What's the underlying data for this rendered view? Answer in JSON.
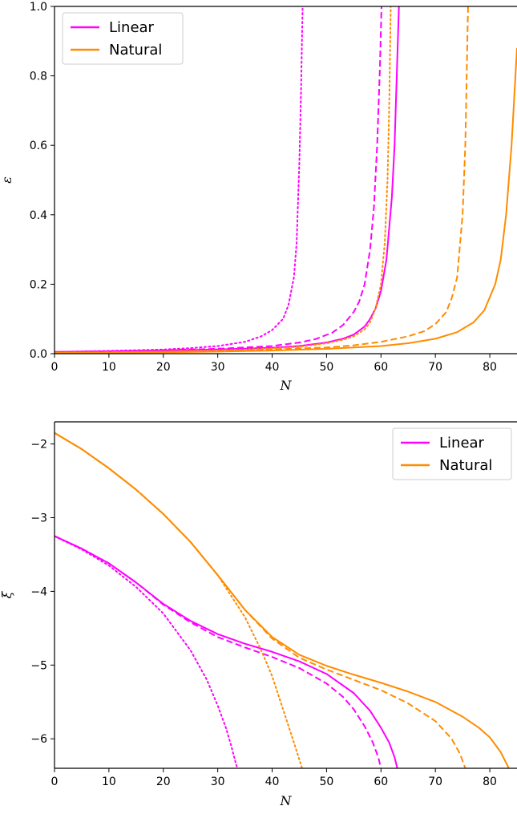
{
  "chart_data": [
    {
      "type": "line",
      "xlabel": "N",
      "ylabel": "ε",
      "xlim": [
        0,
        85
      ],
      "ylim": [
        0.0,
        1.0
      ],
      "xticks": [
        0,
        10,
        20,
        30,
        40,
        50,
        60,
        70,
        80
      ],
      "yticks": [
        0.0,
        0.2,
        0.4,
        0.6,
        0.8,
        1.0
      ],
      "xtick_labels": [
        "0",
        "10",
        "20",
        "30",
        "40",
        "50",
        "60",
        "70",
        "80"
      ],
      "ytick_labels": [
        "0.0",
        "0.2",
        "0.4",
        "0.6",
        "0.8",
        "1.0"
      ],
      "grid": false,
      "legend_position": "top-left",
      "legend": [
        {
          "label": "Linear",
          "color": "#ff00ff"
        },
        {
          "label": "Natural",
          "color": "#ff8c00"
        }
      ],
      "series": [
        {
          "family": "Linear",
          "style": "solid",
          "color": "#ff00ff",
          "x": [
            0,
            10,
            20,
            30,
            40,
            45,
            50,
            53,
            55,
            57,
            58,
            59,
            60,
            61,
            62,
            62.5,
            63,
            63.3
          ],
          "y": [
            0.005,
            0.007,
            0.009,
            0.012,
            0.017,
            0.022,
            0.032,
            0.043,
            0.055,
            0.078,
            0.1,
            0.13,
            0.18,
            0.27,
            0.45,
            0.6,
            0.85,
            1.0
          ]
        },
        {
          "family": "Linear",
          "style": "dashed",
          "color": "#ff00ff",
          "x": [
            0,
            10,
            20,
            30,
            40,
            45,
            48,
            51,
            53,
            55,
            56,
            57,
            58,
            58.7,
            59.3,
            59.8,
            60.1
          ],
          "y": [
            0.005,
            0.007,
            0.01,
            0.014,
            0.022,
            0.032,
            0.042,
            0.06,
            0.082,
            0.12,
            0.15,
            0.2,
            0.3,
            0.42,
            0.6,
            0.82,
            1.0
          ]
        },
        {
          "family": "Linear",
          "style": "dotted",
          "color": "#ff00ff",
          "x": [
            0,
            10,
            20,
            25,
            30,
            35,
            38,
            40,
            42,
            43,
            44,
            44.5,
            45,
            45.3,
            45.6
          ],
          "y": [
            0.005,
            0.008,
            0.012,
            0.016,
            0.022,
            0.034,
            0.05,
            0.068,
            0.1,
            0.14,
            0.22,
            0.32,
            0.55,
            0.75,
            1.0
          ]
        },
        {
          "family": "Natural",
          "style": "solid",
          "color": "#ff8c00",
          "x": [
            0,
            10,
            20,
            30,
            40,
            50,
            60,
            65,
            70,
            74,
            77,
            79,
            81,
            82,
            83,
            84,
            85
          ],
          "y": [
            0.002,
            0.003,
            0.004,
            0.006,
            0.009,
            0.014,
            0.022,
            0.03,
            0.043,
            0.062,
            0.09,
            0.125,
            0.2,
            0.27,
            0.4,
            0.6,
            0.88
          ]
        },
        {
          "family": "Natural",
          "style": "dashed",
          "color": "#ff8c00",
          "x": [
            0,
            10,
            20,
            30,
            40,
            50,
            55,
            60,
            65,
            68,
            70,
            72,
            73,
            74,
            75,
            75.5,
            76
          ],
          "y": [
            0.003,
            0.004,
            0.006,
            0.008,
            0.012,
            0.018,
            0.024,
            0.034,
            0.05,
            0.065,
            0.085,
            0.12,
            0.16,
            0.22,
            0.4,
            0.6,
            1.0
          ]
        },
        {
          "family": "Natural",
          "style": "dotted",
          "color": "#ff8c00",
          "x": [
            0,
            10,
            20,
            30,
            40,
            45,
            50,
            53,
            55,
            57,
            58,
            59,
            60,
            60.7,
            61.2,
            61.5,
            61.8
          ],
          "y": [
            0.003,
            0.004,
            0.006,
            0.009,
            0.015,
            0.02,
            0.03,
            0.04,
            0.05,
            0.07,
            0.09,
            0.13,
            0.2,
            0.32,
            0.5,
            0.7,
            1.0
          ]
        }
      ]
    },
    {
      "type": "line",
      "xlabel": "N",
      "ylabel": "ξ",
      "xlim": [
        0,
        85
      ],
      "ylim": [
        -6.4,
        -1.7
      ],
      "xticks": [
        0,
        10,
        20,
        30,
        40,
        50,
        60,
        70,
        80
      ],
      "yticks": [
        -6,
        -5,
        -4,
        -3,
        -2
      ],
      "xtick_labels": [
        "0",
        "10",
        "20",
        "30",
        "40",
        "50",
        "60",
        "70",
        "80"
      ],
      "ytick_labels": [
        "−6",
        "−5",
        "−4",
        "−3",
        "−2"
      ],
      "grid": false,
      "legend_position": "top-right",
      "legend": [
        {
          "label": "Linear",
          "color": "#ff00ff"
        },
        {
          "label": "Natural",
          "color": "#ff8c00"
        }
      ],
      "series": [
        {
          "family": "Linear",
          "style": "solid",
          "color": "#ff00ff",
          "x": [
            0,
            5,
            10,
            15,
            20,
            25,
            30,
            35,
            40,
            45,
            50,
            55,
            58,
            60,
            61.5,
            62.5,
            63
          ],
          "y": [
            -3.25,
            -3.42,
            -3.62,
            -3.88,
            -4.17,
            -4.4,
            -4.58,
            -4.71,
            -4.82,
            -4.95,
            -5.12,
            -5.38,
            -5.62,
            -5.85,
            -6.05,
            -6.25,
            -6.4
          ]
        },
        {
          "family": "Linear",
          "style": "dashed",
          "color": "#ff00ff",
          "x": [
            0,
            5,
            10,
            15,
            20,
            25,
            30,
            35,
            40,
            45,
            50,
            53,
            55,
            57,
            58.5,
            59.5,
            60
          ],
          "y": [
            -3.25,
            -3.42,
            -3.62,
            -3.88,
            -4.18,
            -4.42,
            -4.62,
            -4.76,
            -4.89,
            -5.04,
            -5.25,
            -5.43,
            -5.6,
            -5.83,
            -6.05,
            -6.25,
            -6.4
          ]
        },
        {
          "family": "Linear",
          "style": "dotted",
          "color": "#ff00ff",
          "x": [
            0,
            5,
            10,
            15,
            20,
            25,
            28,
            30,
            31.5,
            32.5,
            33.2,
            33.6
          ],
          "y": [
            -3.25,
            -3.43,
            -3.65,
            -3.94,
            -4.3,
            -4.8,
            -5.2,
            -5.55,
            -5.85,
            -6.1,
            -6.3,
            -6.4
          ]
        },
        {
          "family": "Natural",
          "style": "solid",
          "color": "#ff8c00",
          "x": [
            0,
            5,
            10,
            15,
            20,
            25,
            30,
            35,
            40,
            45,
            50,
            55,
            60,
            65,
            70,
            75,
            78,
            80,
            82,
            83.5
          ],
          "y": [
            -1.85,
            -2.07,
            -2.33,
            -2.62,
            -2.95,
            -3.33,
            -3.78,
            -4.25,
            -4.62,
            -4.86,
            -5.01,
            -5.13,
            -5.24,
            -5.36,
            -5.5,
            -5.7,
            -5.85,
            -5.98,
            -6.18,
            -6.4
          ]
        },
        {
          "family": "Natural",
          "style": "dashed",
          "color": "#ff8c00",
          "x": [
            0,
            5,
            10,
            15,
            20,
            25,
            30,
            35,
            40,
            45,
            50,
            55,
            60,
            65,
            70,
            73,
            74.5,
            75.5
          ],
          "y": [
            -1.85,
            -2.07,
            -2.33,
            -2.62,
            -2.95,
            -3.33,
            -3.78,
            -4.25,
            -4.64,
            -4.9,
            -5.06,
            -5.2,
            -5.34,
            -5.52,
            -5.76,
            -6.0,
            -6.2,
            -6.4
          ]
        },
        {
          "family": "Natural",
          "style": "dotted",
          "color": "#ff8c00",
          "x": [
            0,
            5,
            10,
            15,
            20,
            25,
            30,
            35,
            38,
            40,
            42,
            44,
            45.5
          ],
          "y": [
            -1.85,
            -2.07,
            -2.33,
            -2.62,
            -2.95,
            -3.33,
            -3.78,
            -4.35,
            -4.8,
            -5.15,
            -5.6,
            -6.05,
            -6.4
          ]
        }
      ]
    }
  ]
}
